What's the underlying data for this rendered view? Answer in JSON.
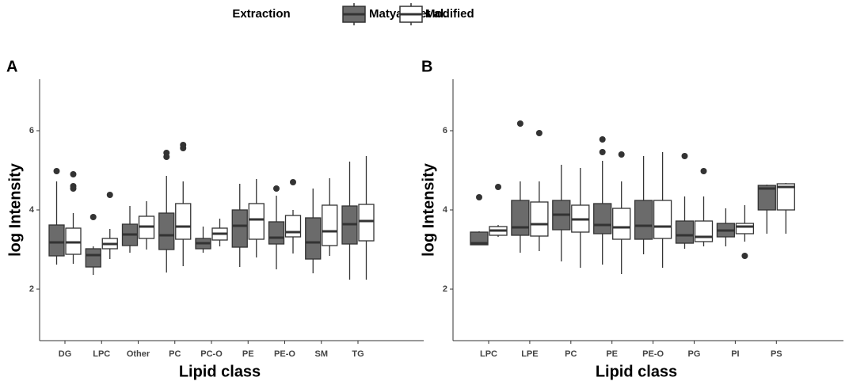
{
  "legend": {
    "title": "Extraction"
  },
  "chart_data": [
    {
      "type": "box",
      "panel_label": "A",
      "xlabel": "Lipid class",
      "ylabel": "log Intensity",
      "categories": [
        "DG",
        "LPC",
        "Other",
        "PC",
        "PC-O",
        "PE",
        "PE-O",
        "SM",
        "TG"
      ],
      "ylim": [
        0.7,
        7.3
      ],
      "yticks": [
        2,
        4,
        6
      ],
      "series": [
        {
          "name": "Matyash et al.",
          "color": "#6b6b6b",
          "values": [
            {
              "min": 2.62,
              "q1": 2.84,
              "median": 3.18,
              "q3": 3.62,
              "max": 4.72,
              "outliers": [
                4.98
              ]
            },
            {
              "min": 2.36,
              "q1": 2.56,
              "median": 2.86,
              "q3": 3.02,
              "max": 3.08,
              "outliers": [
                3.82
              ]
            },
            {
              "min": 2.92,
              "q1": 3.1,
              "median": 3.38,
              "q3": 3.64,
              "max": 4.1,
              "outliers": []
            },
            {
              "min": 2.42,
              "q1": 3.0,
              "median": 3.36,
              "q3": 3.92,
              "max": 4.86,
              "outliers": [
                5.44,
                5.34
              ]
            },
            {
              "min": 2.92,
              "q1": 3.02,
              "median": 3.16,
              "q3": 3.28,
              "max": 3.58,
              "outliers": []
            },
            {
              "min": 2.56,
              "q1": 3.06,
              "median": 3.6,
              "q3": 4.0,
              "max": 4.66,
              "outliers": []
            },
            {
              "min": 2.5,
              "q1": 3.14,
              "median": 3.3,
              "q3": 3.7,
              "max": 4.36,
              "outliers": [
                4.54
              ]
            },
            {
              "min": 2.4,
              "q1": 2.76,
              "median": 3.18,
              "q3": 3.8,
              "max": 4.54,
              "outliers": []
            },
            {
              "min": 2.24,
              "q1": 3.14,
              "median": 3.64,
              "q3": 4.1,
              "max": 5.22,
              "outliers": []
            }
          ]
        },
        {
          "name": "Modified",
          "color": "#ffffff",
          "values": [
            {
              "min": 2.64,
              "q1": 2.88,
              "median": 3.18,
              "q3": 3.54,
              "max": 3.92,
              "outliers": [
                4.9,
                4.6,
                4.54
              ]
            },
            {
              "min": 2.76,
              "q1": 3.02,
              "median": 3.14,
              "q3": 3.28,
              "max": 3.52,
              "outliers": [
                4.38
              ]
            },
            {
              "min": 3.0,
              "q1": 3.28,
              "median": 3.58,
              "q3": 3.84,
              "max": 4.22,
              "outliers": []
            },
            {
              "min": 2.58,
              "q1": 3.26,
              "median": 3.58,
              "q3": 4.16,
              "max": 4.72,
              "outliers": [
                5.64,
                5.56
              ]
            },
            {
              "min": 3.08,
              "q1": 3.24,
              "median": 3.4,
              "q3": 3.54,
              "max": 3.78,
              "outliers": []
            },
            {
              "min": 2.8,
              "q1": 3.26,
              "median": 3.76,
              "q3": 4.16,
              "max": 4.78,
              "outliers": []
            },
            {
              "min": 2.9,
              "q1": 3.32,
              "median": 3.44,
              "q3": 3.86,
              "max": 4.0,
              "outliers": [
                4.7
              ]
            },
            {
              "min": 2.84,
              "q1": 3.1,
              "median": 3.46,
              "q3": 4.12,
              "max": 4.8,
              "outliers": []
            },
            {
              "min": 2.24,
              "q1": 3.22,
              "median": 3.72,
              "q3": 4.14,
              "max": 5.36,
              "outliers": []
            }
          ]
        }
      ]
    },
    {
      "type": "box",
      "panel_label": "B",
      "xlabel": "Lipid class",
      "ylabel": "log Intensity",
      "categories": [
        "LPC",
        "LPE",
        "PC",
        "PE",
        "PE-O",
        "PG",
        "PI",
        "PS"
      ],
      "ylim": [
        0.7,
        7.3
      ],
      "yticks": [
        2,
        4,
        6
      ],
      "series": [
        {
          "name": "Matyash et al.",
          "color": "#6b6b6b",
          "values": [
            {
              "min": 3.12,
              "q1": 3.12,
              "median": 3.16,
              "q3": 3.44,
              "max": 3.46,
              "outliers": [
                4.32
              ]
            },
            {
              "min": 2.92,
              "q1": 3.36,
              "median": 3.56,
              "q3": 4.24,
              "max": 4.72,
              "outliers": [
                6.18
              ]
            },
            {
              "min": 2.7,
              "q1": 3.5,
              "median": 3.88,
              "q3": 4.24,
              "max": 5.14,
              "outliers": []
            },
            {
              "min": 2.62,
              "q1": 3.4,
              "median": 3.62,
              "q3": 4.16,
              "max": 5.24,
              "outliers": [
                5.78,
                5.46
              ]
            },
            {
              "min": 2.88,
              "q1": 3.26,
              "median": 3.6,
              "q3": 4.24,
              "max": 5.36,
              "outliers": []
            },
            {
              "min": 3.02,
              "q1": 3.16,
              "median": 3.36,
              "q3": 3.72,
              "max": 4.34,
              "outliers": [
                5.36
              ]
            },
            {
              "min": 3.08,
              "q1": 3.32,
              "median": 3.48,
              "q3": 3.66,
              "max": 4.04,
              "outliers": []
            },
            {
              "min": 3.4,
              "q1": 4.0,
              "median": 4.54,
              "q3": 4.62,
              "max": 4.64,
              "outliers": []
            }
          ]
        },
        {
          "name": "Modified",
          "color": "#ffffff",
          "values": [
            {
              "min": 3.32,
              "q1": 3.36,
              "median": 3.48,
              "q3": 3.58,
              "max": 3.62,
              "outliers": [
                4.58
              ]
            },
            {
              "min": 2.96,
              "q1": 3.34,
              "median": 3.64,
              "q3": 4.2,
              "max": 4.72,
              "outliers": [
                5.94
              ]
            },
            {
              "min": 2.54,
              "q1": 3.44,
              "median": 3.76,
              "q3": 4.12,
              "max": 5.06,
              "outliers": []
            },
            {
              "min": 2.38,
              "q1": 3.26,
              "median": 3.56,
              "q3": 4.04,
              "max": 4.72,
              "outliers": [
                5.4
              ]
            },
            {
              "min": 2.54,
              "q1": 3.28,
              "median": 3.58,
              "q3": 4.24,
              "max": 5.46,
              "outliers": []
            },
            {
              "min": 3.08,
              "q1": 3.2,
              "median": 3.32,
              "q3": 3.72,
              "max": 4.34,
              "outliers": [
                4.98
              ]
            },
            {
              "min": 3.2,
              "q1": 3.4,
              "median": 3.58,
              "q3": 3.66,
              "max": 4.12,
              "outliers": [
                2.84
              ]
            },
            {
              "min": 3.4,
              "q1": 4.0,
              "median": 4.58,
              "q3": 4.66,
              "max": 4.68,
              "outliers": []
            }
          ]
        }
      ]
    }
  ]
}
